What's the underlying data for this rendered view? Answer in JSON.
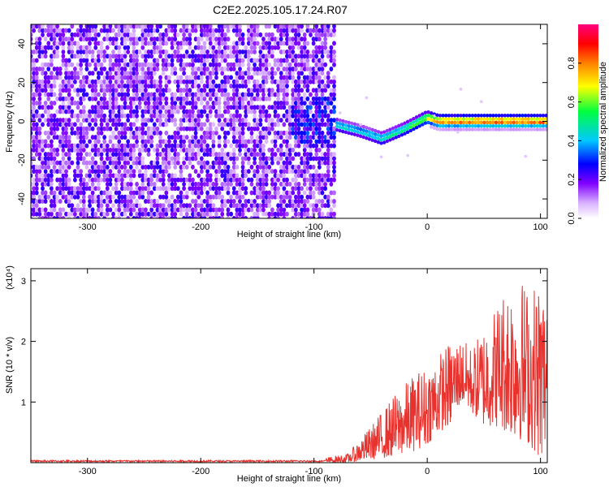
{
  "title": "C2E2.2025.105.17.24.R07",
  "chart_data": [
    {
      "type": "heatmap",
      "xlabel": "Height of straight line (km)",
      "ylabel": "Frequency (Hz)",
      "xlim": [
        -350,
        106
      ],
      "ylim": [
        -50,
        50
      ],
      "x_ticks": [
        -300,
        -200,
        -100,
        0,
        100
      ],
      "y_ticks": [
        -40,
        -20,
        0,
        20,
        40
      ],
      "colorbar": {
        "label": "Normalized spectral amplitude",
        "range": [
          0.0,
          1.0
        ],
        "ticks": [
          0.0,
          0.2,
          0.4,
          0.6,
          0.8
        ],
        "colors": [
          "#ffffff",
          "#b000ff",
          "#2000ff",
          "#00c8ff",
          "#00ff40",
          "#ffff00",
          "#ff8000",
          "#ff0000",
          "#ff0080"
        ]
      },
      "ridge": {
        "x": [
          -350,
          -150,
          -100,
          -80,
          -60,
          -40,
          -20,
          0,
          10,
          50,
          106
        ],
        "y": [
          -3,
          -3,
          -3,
          -2,
          -5,
          -9,
          -4,
          2,
          0,
          0,
          0
        ],
        "amplitude": [
          0.15,
          0.2,
          0.25,
          0.5,
          0.45,
          0.5,
          0.55,
          0.7,
          0.85,
          0.9,
          0.9
        ]
      },
      "noise_until_x": -80
    },
    {
      "type": "line",
      "xlabel": "Height of straight line (km)",
      "ylabel": "SNR (10 * v/v)",
      "y_multiplier": "(x10⁴)",
      "xlim": [
        -350,
        106
      ],
      "ylim": [
        0,
        3.2
      ],
      "x_ticks": [
        -300,
        -200,
        -100,
        0,
        100
      ],
      "y_ticks": [
        1,
        2,
        3
      ],
      "series": [
        {
          "color": "#e8322e",
          "envelope": {
            "x": [
              -350,
              -100,
              -70,
              -50,
              -30,
              -10,
              0,
              10,
              20,
              30,
              40,
              50,
              60,
              70,
              80,
              90,
              100,
              106
            ],
            "y_max": [
              0.05,
              0.05,
              0.15,
              0.6,
              1.1,
              1.5,
              1.6,
              1.8,
              2.0,
              2.05,
              1.9,
              2.3,
              2.6,
              3.0,
              3.15,
              2.9,
              3.1,
              2.8
            ],
            "y_min": [
              0.0,
              0.0,
              0.0,
              0.05,
              0.1,
              0.2,
              0.3,
              0.5,
              0.6,
              1.0,
              0.8,
              0.6,
              0.6,
              0.5,
              0.4,
              0.3,
              0.05,
              0.3
            ]
          }
        }
      ]
    }
  ]
}
